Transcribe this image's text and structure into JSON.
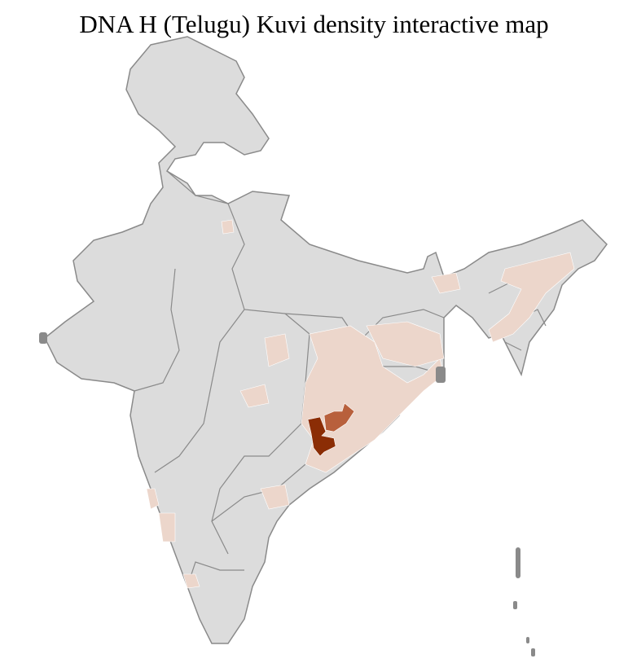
{
  "title": "DNA H (Telugu) Kuvi density interactive map",
  "colors": {
    "no_data": "#dcdcdc",
    "district_border": "#ffffff",
    "state_border": "#8a8a8a",
    "low_density": "#ecd6cb",
    "medium_density": "#b8603c",
    "high_density": "#8b2d05"
  }
}
